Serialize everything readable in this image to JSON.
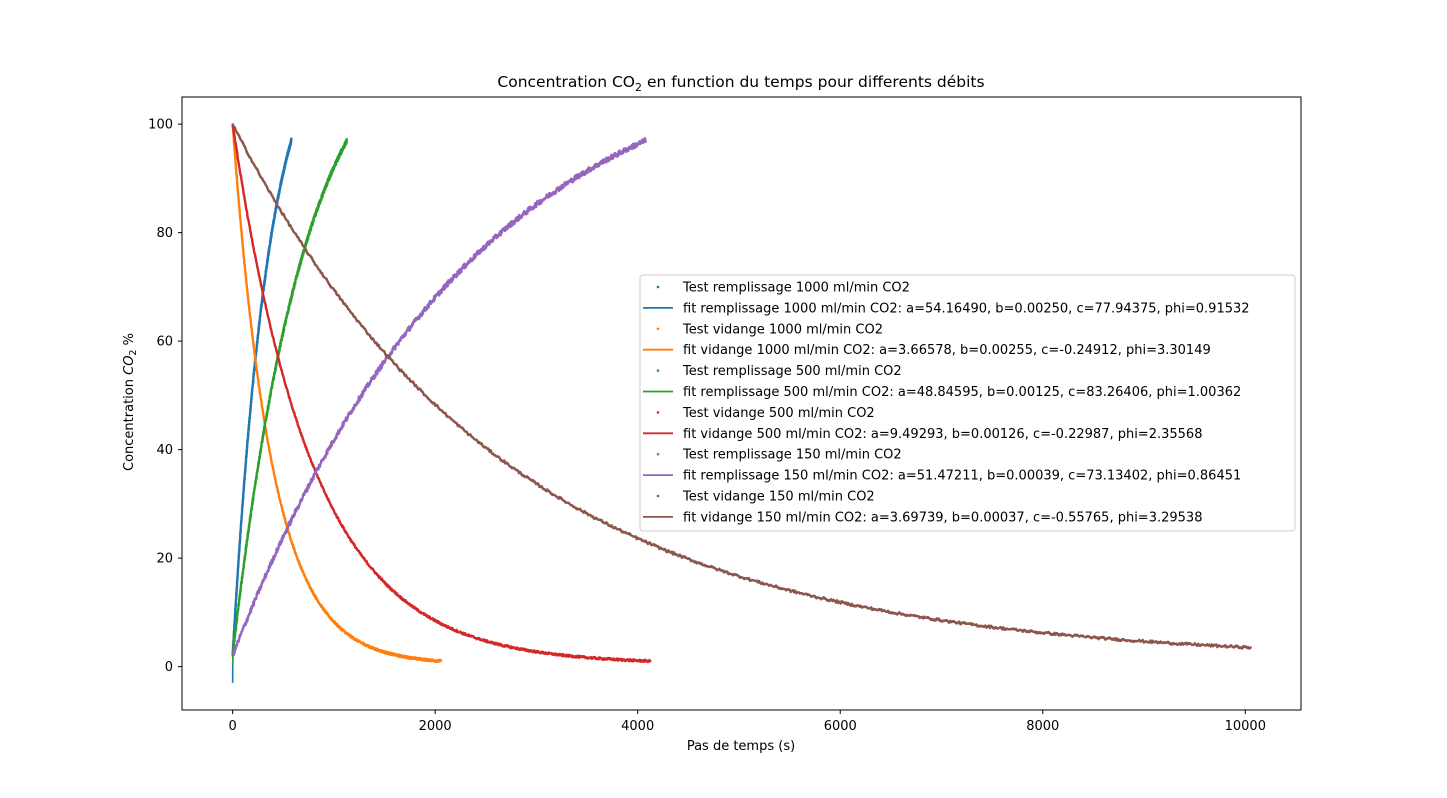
{
  "chart_data": {
    "type": "scatter",
    "title": "Concentration CO",
    "title_sub": "2",
    "title_rest": " en function du temps pour differents débits",
    "xlabel": "Pas de temps (s)",
    "ylabel_pre": "Concentration ",
    "ylabel_co": "CO",
    "ylabel_sub": "2",
    "ylabel_post": " %",
    "xlim": [
      -500,
      10550
    ],
    "ylim": [
      -8,
      105
    ],
    "xticks": [
      0,
      2000,
      4000,
      6000,
      8000,
      10000
    ],
    "yticks": [
      0,
      20,
      40,
      60,
      80,
      100
    ],
    "grid": false,
    "legend_position": "center-right",
    "series": [
      {
        "name": "Test remplissage 1000 ml/min CO2",
        "fit_name": "fit remplissage 1000 ml/min CO2: a=54.16490, b=0.00250, c=77.94375, phi=0.91532",
        "color": "#1f77b4",
        "kind": "fill",
        "t_max": 580,
        "a": 54.1649,
        "b": 0.0025,
        "c": 77.94375,
        "phi": 0.91532,
        "noise": 0.6
      },
      {
        "name": "Test vidange 1000 ml/min CO2",
        "fit_name": "fit vidange 1000 ml/min CO2: a=3.66578, b=0.00255, c=-0.24912, phi=3.30149",
        "color": "#ff7f0e",
        "kind": "drain",
        "t_max": 2060,
        "a": 3.66578,
        "b": 0.00255,
        "c": -0.24912,
        "phi": 3.30149,
        "noise": 0.4
      },
      {
        "name": "Test remplissage 500 ml/min CO2",
        "fit_name": "fit remplissage 500 ml/min CO2: a=48.84595, b=0.00125, c=83.26406, phi=1.00362",
        "color": "#2ca02c",
        "kind": "fill",
        "t_max": 1130,
        "a": 48.84595,
        "b": 0.00125,
        "c": 83.26406,
        "phi": 1.00362,
        "noise": 0.6
      },
      {
        "name": "Test vidange 500 ml/min CO2",
        "fit_name": "fit vidange 500 ml/min CO2: a=9.49293, b=0.00126, c=-0.22987, phi=2.35568",
        "color": "#d62728",
        "kind": "drain",
        "t_max": 4130,
        "a": 9.49293,
        "b": 0.00126,
        "c": -0.22987,
        "phi": 2.35568,
        "noise": 0.4
      },
      {
        "name": "Test remplissage 150 ml/min CO2",
        "fit_name": "fit remplissage 150 ml/min CO2: a=51.47211, b=0.00039, c=73.13402, phi=0.86451",
        "color": "#9467bd",
        "kind": "fill",
        "t_max": 4080,
        "a": 51.47211,
        "b": 0.00039,
        "c": 73.13402,
        "phi": 0.86451,
        "noise": 0.7
      },
      {
        "name": "Test vidange 150 ml/min CO2",
        "fit_name": "fit vidange 150 ml/min CO2: a=3.69739, b=0.00037, c=-0.55765, phi=3.29538",
        "color": "#8c564b",
        "kind": "drain",
        "t_max": 10060,
        "a": 3.69739,
        "b": 0.00037,
        "c": -0.55765,
        "phi": 3.29538,
        "noise": 0.5
      }
    ]
  }
}
